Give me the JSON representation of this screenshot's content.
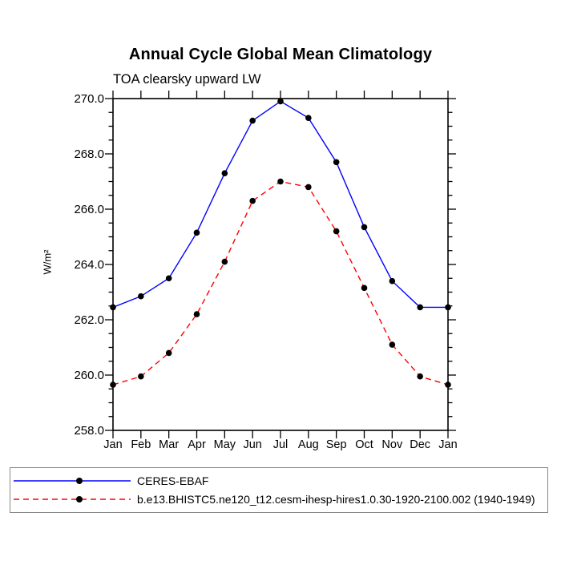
{
  "chart_data": {
    "type": "line",
    "title": "Annual Cycle Global Mean Climatology",
    "subtitle": "TOA clearsky upward LW",
    "ylabel": "W/m²",
    "xlabel": "",
    "x_categories": [
      "Jan",
      "Feb",
      "Mar",
      "Apr",
      "May",
      "Jun",
      "Jul",
      "Aug",
      "Sep",
      "Oct",
      "Nov",
      "Dec",
      "Jan"
    ],
    "ylim": [
      258.0,
      270.0
    ],
    "y_major_step": 2.0,
    "y_minor_step": 0.5,
    "y_tick_labels": [
      "258.0",
      "260.0",
      "262.0",
      "264.0",
      "266.0",
      "268.0",
      "270.0"
    ],
    "grid": false,
    "axis_color": "#000000",
    "legend_position": "bottom-outside-boxed",
    "series": [
      {
        "name": "CERES-EBAF",
        "color": "#0000ff",
        "line_style": "solid",
        "marker": "filled-circle",
        "marker_color": "#000000",
        "values": [
          262.45,
          262.85,
          263.5,
          265.15,
          267.3,
          269.2,
          269.9,
          269.3,
          267.7,
          265.35,
          263.4,
          262.45,
          262.45
        ]
      },
      {
        "name": "b.e13.BHISTC5.ne120_t12.cesm-ihesp-hires1.0.30-1920-2100.002 (1940-1949)",
        "color": "#ff0000",
        "line_style": "dashed",
        "marker": "filled-circle",
        "marker_color": "#000000",
        "values": [
          259.65,
          259.95,
          260.8,
          262.2,
          264.1,
          266.3,
          267.0,
          266.8,
          265.2,
          263.15,
          261.1,
          259.95,
          259.65
        ]
      }
    ]
  }
}
